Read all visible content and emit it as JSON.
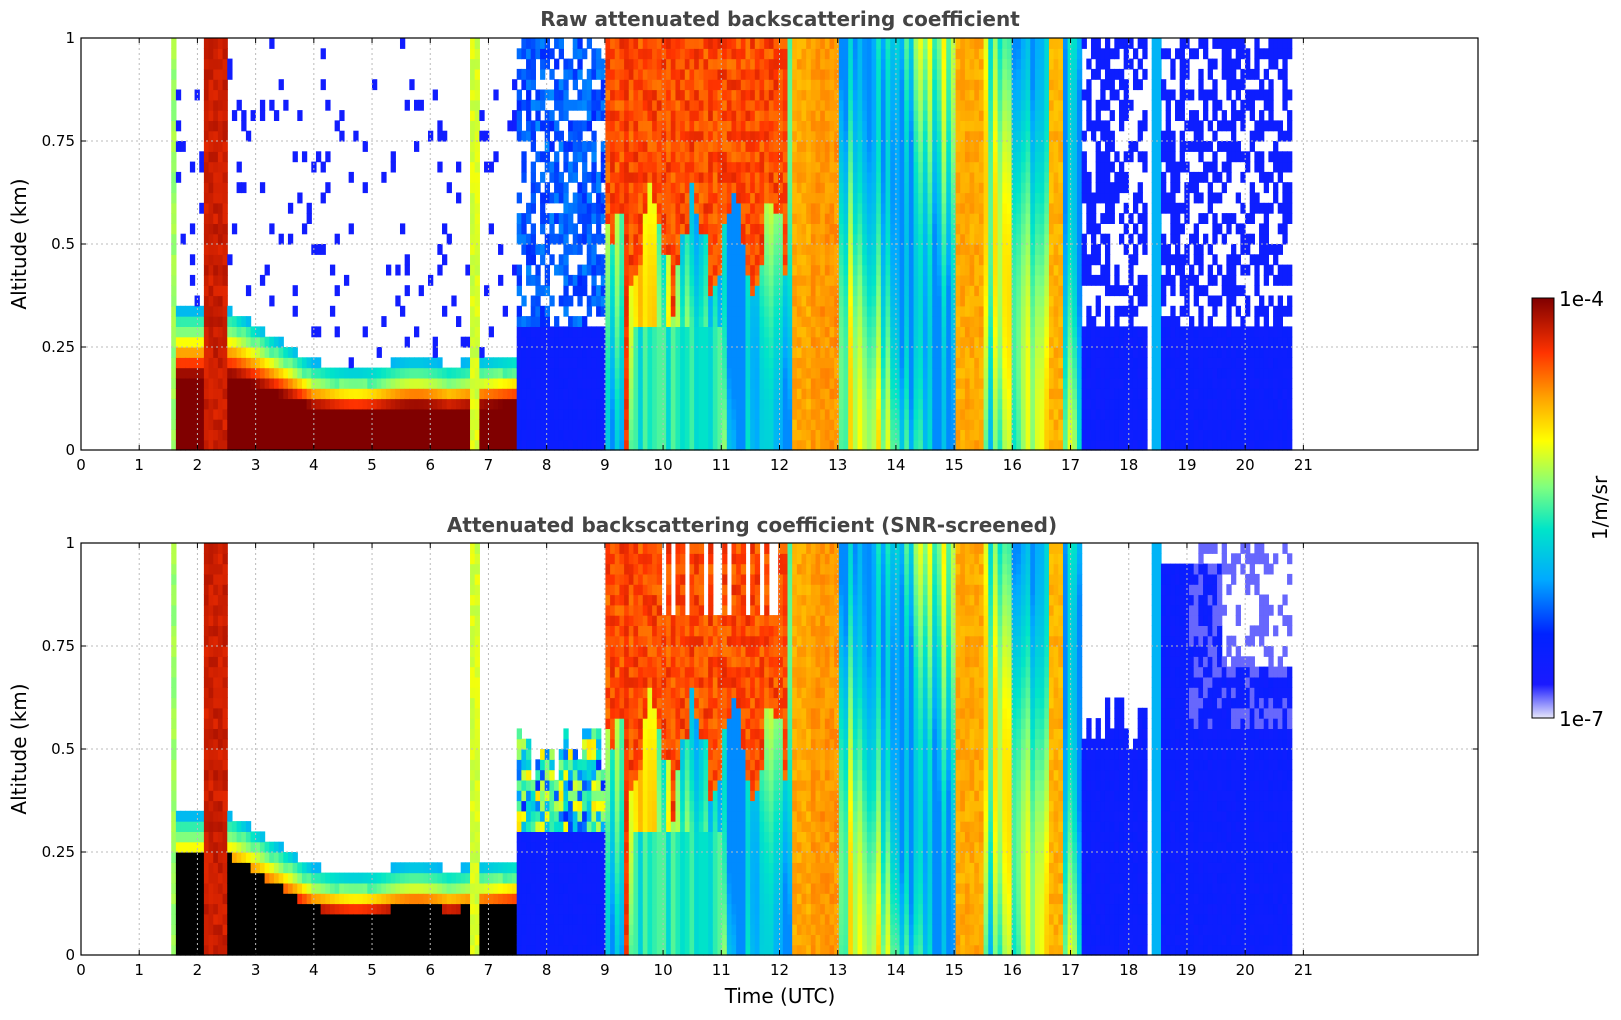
{
  "chart_data": [
    {
      "type": "heatmap",
      "title": "Raw attenuated backscattering coefficient",
      "xlabel": "",
      "ylabel": "Altitude (km)",
      "xlim": [
        0,
        24
      ],
      "ylim": [
        0,
        1
      ],
      "x_ticks": [
        "0",
        "1",
        "2",
        "3",
        "4",
        "5",
        "6",
        "7",
        "8",
        "9",
        "10",
        "11",
        "12",
        "13",
        "14",
        "15",
        "16",
        "17",
        "18",
        "19",
        "20",
        "21"
      ],
      "y_ticks": [
        "0",
        "0.25",
        "0.5",
        "0.75",
        "1"
      ],
      "grid": true,
      "data_time_range": [
        1.55,
        20.8
      ],
      "colorscale": "jet",
      "screened": false
    },
    {
      "type": "heatmap",
      "title": "Attenuated backscattering coefficient (SNR-screened)",
      "xlabel": "Time (UTC)",
      "ylabel": "Altitude (km)",
      "xlim": [
        0,
        24
      ],
      "ylim": [
        0,
        1
      ],
      "x_ticks": [
        "0",
        "1",
        "2",
        "3",
        "4",
        "5",
        "6",
        "7",
        "8",
        "9",
        "10",
        "11",
        "12",
        "13",
        "14",
        "15",
        "16",
        "17",
        "18",
        "19",
        "20",
        "21"
      ],
      "y_ticks": [
        "0",
        "0.25",
        "0.5",
        "0.75",
        "1"
      ],
      "grid": true,
      "data_time_range": [
        1.55,
        20.8
      ],
      "colorscale": "jet",
      "screened": true
    }
  ],
  "colorbar": {
    "label": "1/m/sr",
    "max_label": "1e-4",
    "min_label": "1e-7",
    "scale": "log",
    "range": [
      1e-07,
      0.0001
    ],
    "colors": [
      "#e6e6fa",
      "#0000ff",
      "#00aaff",
      "#00e5c8",
      "#7fff7f",
      "#ffff00",
      "#ffa500",
      "#ff3300",
      "#800000"
    ]
  }
}
